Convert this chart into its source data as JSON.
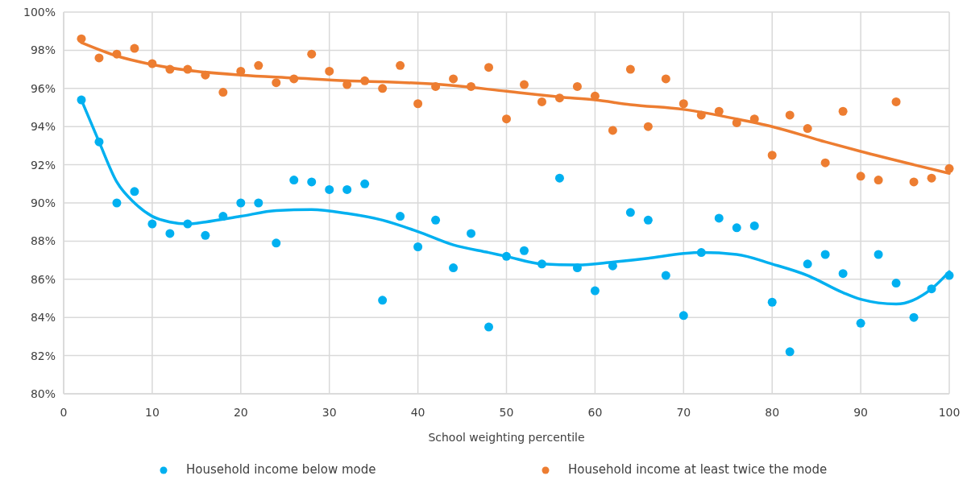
{
  "chart_data": {
    "type": "scatter",
    "xlabel": "School weighting percentile",
    "xlim": [
      0,
      100
    ],
    "xticks": [
      0,
      10,
      20,
      30,
      40,
      50,
      60,
      70,
      80,
      90,
      100
    ],
    "ylim": [
      80,
      100
    ],
    "yticks": [
      {
        "value": 80,
        "label": "80%"
      },
      {
        "value": 82,
        "label": "82%"
      },
      {
        "value": 84,
        "label": "84%"
      },
      {
        "value": 86,
        "label": "86%"
      },
      {
        "value": 88,
        "label": "88%"
      },
      {
        "value": 90,
        "label": "90%"
      },
      {
        "value": 92,
        "label": "92%"
      },
      {
        "value": 94,
        "label": "94%"
      },
      {
        "value": 96,
        "label": "96%"
      },
      {
        "value": 98,
        "label": "98%"
      },
      {
        "value": 100,
        "label": "100%"
      }
    ],
    "grid": true,
    "legend": "bottom",
    "marker": "circle",
    "x": [
      2,
      4,
      6,
      8,
      10,
      12,
      14,
      16,
      18,
      20,
      22,
      24,
      26,
      28,
      30,
      32,
      34,
      36,
      38,
      40,
      42,
      44,
      46,
      48,
      50,
      52,
      54,
      56,
      58,
      60,
      62,
      64,
      66,
      68,
      70,
      72,
      74,
      76,
      78,
      80,
      82,
      84,
      86,
      88,
      90,
      92,
      94,
      96,
      98,
      100
    ],
    "series": [
      {
        "name": "Household income below mode",
        "color": "#00b0f0",
        "values": [
          95.4,
          93.2,
          90.0,
          90.6,
          88.9,
          88.4,
          88.9,
          88.3,
          89.3,
          90.0,
          90.0,
          87.9,
          91.2,
          91.1,
          90.7,
          90.7,
          91.0,
          84.9,
          89.3,
          87.7,
          89.1,
          86.6,
          88.4,
          83.5,
          87.2,
          87.5,
          86.8,
          91.3,
          86.6,
          85.4,
          86.7,
          89.5,
          89.1,
          86.2,
          84.1,
          87.4,
          89.2,
          88.7,
          88.8,
          84.8,
          82.2,
          86.8,
          87.3,
          86.3,
          83.7,
          87.3,
          85.8,
          84.0,
          85.5,
          86.2
        ]
      },
      {
        "name": "Household income at least twice the mode",
        "color": "#ed7d31",
        "values": [
          98.6,
          97.6,
          97.8,
          98.1,
          97.3,
          97.0,
          97.0,
          96.7,
          95.8,
          96.9,
          97.2,
          96.3,
          96.5,
          97.8,
          96.9,
          96.2,
          96.4,
          96.0,
          97.2,
          95.2,
          96.1,
          96.5,
          96.1,
          97.1,
          94.4,
          96.2,
          95.3,
          95.5,
          96.1,
          95.6,
          93.8,
          97.0,
          94.0,
          96.5,
          95.2,
          94.6,
          94.8,
          94.2,
          94.4,
          92.5,
          94.6,
          93.9,
          92.1,
          94.8,
          91.4,
          91.2,
          95.3,
          91.1,
          91.3,
          91.8
        ]
      },
      {
        "type": "line",
        "marker": "none",
        "color": "#00b0f0",
        "x": [
          2,
          4,
          6,
          8,
          10,
          12,
          14,
          16,
          20,
          24,
          28,
          32,
          36,
          40,
          44,
          48,
          50,
          54,
          58,
          62,
          66,
          70,
          72,
          76,
          80,
          84,
          88,
          90,
          94,
          98,
          100
        ],
        "values": [
          95.4,
          93.2,
          91.1,
          90.0,
          89.3,
          89.0,
          88.9,
          89.0,
          89.3,
          89.6,
          89.65,
          89.45,
          89.1,
          88.5,
          87.8,
          87.4,
          87.2,
          86.8,
          86.75,
          86.9,
          87.1,
          87.35,
          87.4,
          87.3,
          86.8,
          86.2,
          85.3,
          84.95,
          84.7,
          85.5,
          86.4
        ]
      },
      {
        "type": "line",
        "marker": "none",
        "color": "#ed7d31",
        "x": [
          2,
          6,
          10,
          14,
          20,
          26,
          32,
          36,
          44,
          50,
          56,
          60,
          64,
          70,
          76,
          80,
          86,
          90,
          96,
          100
        ],
        "values": [
          98.4,
          97.7,
          97.25,
          96.95,
          96.7,
          96.55,
          96.4,
          96.35,
          96.15,
          95.85,
          95.55,
          95.4,
          95.15,
          94.9,
          94.4,
          94.0,
          93.2,
          92.7,
          92.0,
          91.55
        ]
      }
    ]
  }
}
